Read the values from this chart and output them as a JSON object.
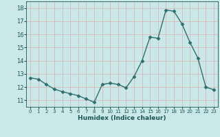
{
  "x": [
    0,
    1,
    2,
    3,
    4,
    5,
    6,
    7,
    8,
    9,
    10,
    11,
    12,
    13,
    14,
    15,
    16,
    17,
    18,
    19,
    20,
    21,
    22,
    23
  ],
  "y": [
    12.7,
    12.6,
    12.2,
    11.85,
    11.65,
    11.5,
    11.35,
    11.1,
    10.85,
    12.2,
    12.3,
    12.2,
    11.95,
    12.8,
    14.0,
    15.8,
    15.7,
    17.85,
    17.75,
    16.8,
    15.4,
    14.2,
    12.0,
    11.8
  ],
  "xlabel": "Humidex (Indice chaleur)",
  "ylim": [
    10.5,
    18.5
  ],
  "xlim": [
    -0.5,
    23.5
  ],
  "yticks": [
    11,
    12,
    13,
    14,
    15,
    16,
    17,
    18
  ],
  "xticks": [
    0,
    1,
    2,
    3,
    4,
    5,
    6,
    7,
    8,
    9,
    10,
    11,
    12,
    13,
    14,
    15,
    16,
    17,
    18,
    19,
    20,
    21,
    22,
    23
  ],
  "line_color": "#2d6e6e",
  "marker": "D",
  "marker_size": 2.5,
  "bg_color": "#cbe8e8",
  "grid_color": "#d9b8b8",
  "tick_color": "#1a5454",
  "label_color": "#1a5454"
}
